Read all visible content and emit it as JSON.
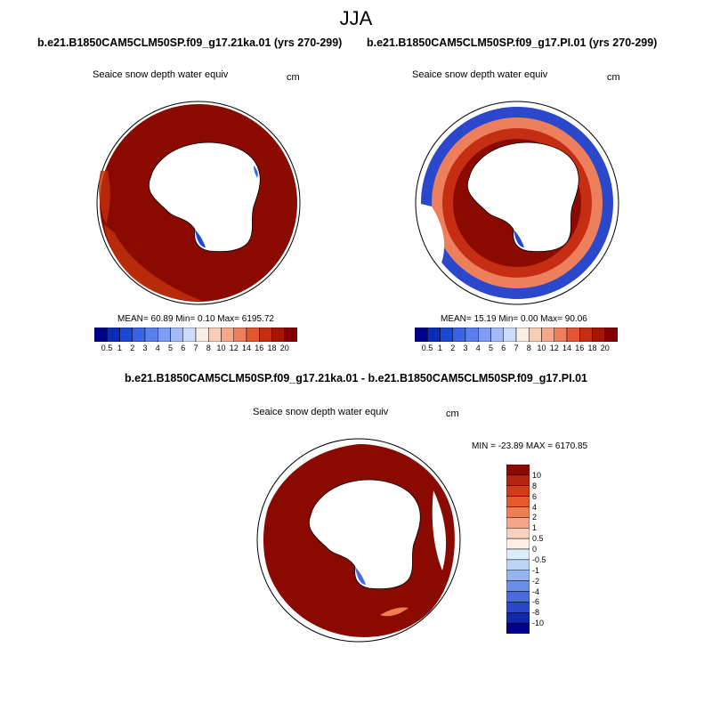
{
  "figure": {
    "title": "JJA",
    "colors": {
      "dark_red": "#8b0a00",
      "red_shade": "#c0300a",
      "coast_outline": "#000000",
      "land_fill": "#ffffff"
    }
  },
  "panels": [
    {
      "id": "panel-21ka",
      "case_title": "b.e21.B1850CAM5CLM50SP.f09_g17.21ka.01 (yrs 270-299)",
      "variable": "Seaice snow depth water equiv",
      "units": "cm",
      "stats": "MEAN=  60.89  Min=   0.10  Max= 6195.72",
      "colorbar": {
        "labels": [
          "0.5",
          "1",
          "2",
          "3",
          "4",
          "5",
          "6",
          "7",
          "8",
          "10",
          "12",
          "14",
          "16",
          "18",
          "20"
        ],
        "colors": [
          "#00008b",
          "#0d2ab8",
          "#1c48d6",
          "#3a63e6",
          "#5b80ee",
          "#7e9cf3",
          "#a4bcf6",
          "#cddcf8",
          "#fbeee6",
          "#f8cdb8",
          "#f4a88a",
          "#ee7f5c",
          "#e45532",
          "#c52e12",
          "#a31606",
          "#850000"
        ]
      }
    },
    {
      "id": "panel-pi",
      "case_title": "b.e21.B1850CAM5CLM50SP.f09_g17.PI.01 (yrs 270-299)",
      "variable": "Seaice snow depth water equiv",
      "units": "cm",
      "stats": "MEAN=  15.19  Min=   0.00  Max=  90.06",
      "colorbar": {
        "labels": [
          "0.5",
          "1",
          "2",
          "3",
          "4",
          "5",
          "6",
          "7",
          "8",
          "10",
          "12",
          "14",
          "16",
          "18",
          "20"
        ],
        "colors": [
          "#00008b",
          "#0d2ab8",
          "#1c48d6",
          "#3a63e6",
          "#5b80ee",
          "#7e9cf3",
          "#a4bcf6",
          "#cddcf8",
          "#fbeee6",
          "#f8cdb8",
          "#f4a88a",
          "#ee7f5c",
          "#e45532",
          "#c52e12",
          "#a31606",
          "#850000"
        ]
      }
    },
    {
      "id": "panel-diff",
      "case_title": "b.e21.B1850CAM5CLM50SP.f09_g17.21ka.01 - b.e21.B1850CAM5CLM50SP.f09_g17.PI.01",
      "variable": "Seaice snow depth water equiv",
      "units": "cm",
      "minmax": "MIN = -23.89 MAX = 6170.85",
      "colorbar": {
        "labels": [
          "10",
          "8",
          "6",
          "4",
          "2",
          "1",
          "0.5",
          "0",
          "-0.5",
          "-1",
          "-2",
          "-4",
          "-6",
          "-8",
          "-10"
        ],
        "colors": [
          "#8b0a00",
          "#b52410",
          "#d23a18",
          "#e65a2c",
          "#f07e52",
          "#f6a687",
          "#fad1bf",
          "#fdeee6",
          "#dcecfb",
          "#bcd4f6",
          "#96b4f0",
          "#6d8ee8",
          "#4a6bde",
          "#2b48cc",
          "#1228a8",
          "#00008b"
        ]
      }
    }
  ]
}
